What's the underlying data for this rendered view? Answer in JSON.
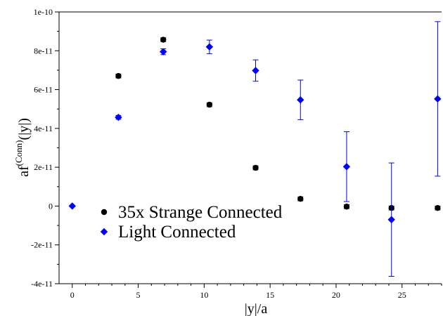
{
  "chart_data": {
    "type": "scatter",
    "xlabel": "|y|/a",
    "ylabel": {
      "main": "af",
      "sup": "(Conn)",
      "tail": "(|y|)"
    },
    "xlim": [
      -1,
      28
    ],
    "ylim": [
      -4e-11,
      1e-10
    ],
    "xticks": [
      0,
      5,
      10,
      15,
      20,
      25
    ],
    "xtick_labels": [
      "0",
      "5",
      "10",
      "15",
      "20",
      "25"
    ],
    "yticks": [
      -4e-11,
      -2e-11,
      0,
      2e-11,
      4e-11,
      6e-11,
      8e-11,
      1e-10
    ],
    "ytick_labels": [
      "-4e-11",
      "-2e-11",
      "0",
      "2e-11",
      "4e-11",
      "6e-11",
      "8e-11",
      "1e-10"
    ],
    "legend_position": "bottom-left",
    "series": [
      {
        "name": "35x Strange Connected",
        "marker": "circle",
        "color": "#000000",
        "points": [
          {
            "x": 3.5,
            "y": 6.7e-11,
            "err": 1e-12
          },
          {
            "x": 6.9,
            "y": 8.57e-11,
            "err": 1e-12
          },
          {
            "x": 10.4,
            "y": 5.22e-11,
            "err": 1e-12
          },
          {
            "x": 13.9,
            "y": 1.97e-11,
            "err": 1e-12
          },
          {
            "x": 17.3,
            "y": 3.7e-12,
            "err": 1e-12
          },
          {
            "x": 20.8,
            "y": -3e-13,
            "err": 1e-12
          },
          {
            "x": 24.2,
            "y": -1e-12,
            "err": 1e-12
          },
          {
            "x": 27.7,
            "y": -1e-12,
            "err": 1e-12
          }
        ]
      },
      {
        "name": "Light Connected",
        "marker": "diamond",
        "color": "#0000ff",
        "points": [
          {
            "x": 0,
            "y": 0,
            "err": 0
          },
          {
            "x": 3.5,
            "y": 4.57e-11,
            "err": 1e-12
          },
          {
            "x": 6.9,
            "y": 7.95e-11,
            "err": 1.5e-12
          },
          {
            "x": 10.4,
            "y": 8.2e-11,
            "err": 3.5e-12
          },
          {
            "x": 13.9,
            "y": 6.98e-11,
            "err": 5.5e-12
          },
          {
            "x": 17.3,
            "y": 5.47e-11,
            "err": 1.02e-11
          },
          {
            "x": 20.8,
            "y": 2.03e-11,
            "err": 1.8e-11
          },
          {
            "x": 24.2,
            "y": -7e-12,
            "err": 2.92e-11
          },
          {
            "x": 27.7,
            "y": 5.52e-11,
            "err": 3.98e-11
          }
        ]
      }
    ]
  }
}
